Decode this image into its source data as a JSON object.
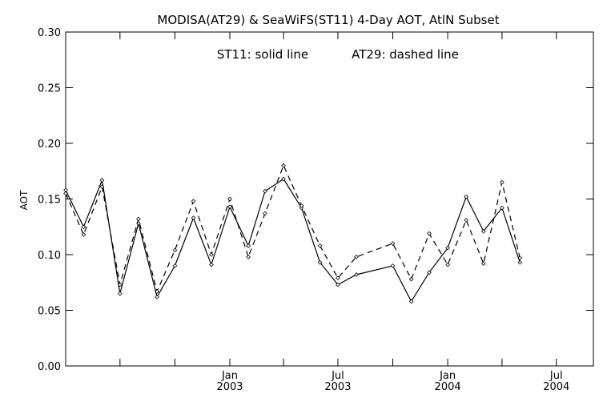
{
  "chart_data": {
    "type": "line",
    "title": "MODISA(AT29) & SeaWiFS(ST11) 4-Day AOT, AtlN Subset",
    "annotation_solid": "ST11: solid line",
    "annotation_dashed": "AT29: dashed line",
    "ylabel": "AOT",
    "xlabel": "",
    "ylim": [
      0.0,
      0.3
    ],
    "yticks": [
      "0.00",
      "0.05",
      "0.10",
      "0.15",
      "0.20",
      "0.25",
      "0.30"
    ],
    "x_range": [
      "2002-04-01",
      "2004-09-01"
    ],
    "xtick_dates": [
      "2002-07-01",
      "2002-10-01",
      "2003-01-01",
      "2003-04-01",
      "2003-07-01",
      "2003-10-01",
      "2004-01-01",
      "2004-04-01",
      "2004-07-01"
    ],
    "xtick_labels": [
      {
        "date": "2003-01-01",
        "month": "Jan",
        "year": "2003"
      },
      {
        "date": "2003-07-01",
        "month": "Jul",
        "year": "2003"
      },
      {
        "date": "2004-01-01",
        "month": "Jan",
        "year": "2004"
      },
      {
        "date": "2004-07-01",
        "month": "Jul",
        "year": "2004"
      }
    ],
    "grid": false,
    "series": [
      {
        "name": "ST11",
        "style": "solid",
        "color": "#000000",
        "points": [
          {
            "x": "2002-04-01",
            "y": 0.158
          },
          {
            "x": "2002-05-01",
            "y": 0.125
          },
          {
            "x": "2002-06-01",
            "y": 0.167
          },
          {
            "x": "2002-07-01",
            "y": 0.065
          },
          {
            "x": "2002-08-01",
            "y": 0.128
          },
          {
            "x": "2002-09-01",
            "y": 0.062
          },
          {
            "x": "2002-10-01",
            "y": 0.09
          },
          {
            "x": "2002-11-01",
            "y": 0.133
          },
          {
            "x": "2002-12-01",
            "y": 0.091
          },
          {
            "x": "2003-01-01",
            "y": 0.143
          },
          {
            "x": "2003-02-01",
            "y": 0.108
          },
          {
            "x": "2003-03-01",
            "y": 0.157
          },
          {
            "x": "2003-04-01",
            "y": 0.168
          },
          {
            "x": "2003-05-01",
            "y": 0.142
          },
          {
            "x": "2003-06-01",
            "y": 0.093
          },
          {
            "x": "2003-07-01",
            "y": 0.073
          },
          {
            "x": "2003-08-01",
            "y": 0.082
          },
          {
            "x": "2003-10-01",
            "y": 0.09
          },
          {
            "x": "2003-11-01",
            "y": 0.058
          },
          {
            "x": "2003-12-01",
            "y": 0.084
          },
          {
            "x": "2004-01-01",
            "y": 0.106
          },
          {
            "x": "2004-02-01",
            "y": 0.152
          },
          {
            "x": "2004-03-01",
            "y": 0.121
          },
          {
            "x": "2004-04-01",
            "y": 0.142
          },
          {
            "x": "2004-05-01",
            "y": 0.093
          }
        ]
      },
      {
        "name": "AT29",
        "style": "dashed",
        "color": "#000000",
        "points": [
          {
            "x": "2002-04-01",
            "y": 0.155
          },
          {
            "x": "2002-05-01",
            "y": 0.118
          },
          {
            "x": "2002-06-01",
            "y": 0.161
          },
          {
            "x": "2002-07-01",
            "y": 0.073
          },
          {
            "x": "2002-08-01",
            "y": 0.132
          },
          {
            "x": "2002-09-01",
            "y": 0.067
          },
          {
            "x": "2002-10-01",
            "y": 0.104
          },
          {
            "x": "2002-11-01",
            "y": 0.148
          },
          {
            "x": "2002-12-01",
            "y": 0.1
          },
          {
            "x": "2003-01-01",
            "y": 0.15
          },
          {
            "x": "2003-02-01",
            "y": 0.098
          },
          {
            "x": "2003-03-01",
            "y": 0.137
          },
          {
            "x": "2003-04-01",
            "y": 0.18
          },
          {
            "x": "2003-05-01",
            "y": 0.144
          },
          {
            "x": "2003-06-01",
            "y": 0.108
          },
          {
            "x": "2003-07-01",
            "y": 0.079
          },
          {
            "x": "2003-08-01",
            "y": 0.098
          },
          {
            "x": "2003-10-01",
            "y": 0.11
          },
          {
            "x": "2003-11-01",
            "y": 0.078
          },
          {
            "x": "2003-12-01",
            "y": 0.119
          },
          {
            "x": "2004-01-01",
            "y": 0.091
          },
          {
            "x": "2004-02-01",
            "y": 0.131
          },
          {
            "x": "2004-03-01",
            "y": 0.092
          },
          {
            "x": "2004-04-01",
            "y": 0.165
          },
          {
            "x": "2004-05-01",
            "y": 0.097
          }
        ]
      }
    ]
  }
}
